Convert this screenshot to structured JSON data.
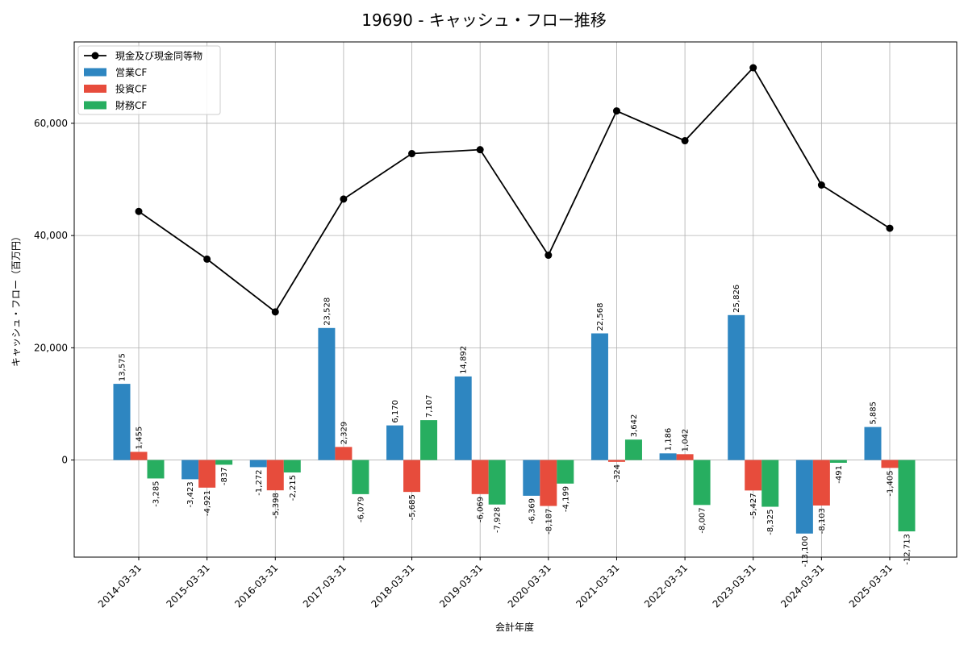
{
  "chart_data": {
    "type": "bar",
    "title": "19690 - キャッシュ・フロー推移",
    "xlabel": "会計年度",
    "ylabel": "キャッシュ・フロー（百万円）",
    "ylim": [
      -17300,
      74500
    ],
    "yticks": [
      0,
      20000,
      40000,
      60000
    ],
    "ytick_labels": [
      "0",
      "20,000",
      "40,000",
      "60,000"
    ],
    "grid": true,
    "legend_position": "top-left",
    "categories": [
      "2014-03-31",
      "2015-03-31",
      "2016-03-31",
      "2017-03-31",
      "2018-03-31",
      "2019-03-31",
      "2020-03-31",
      "2021-03-31",
      "2022-03-31",
      "2023-03-31",
      "2024-03-31",
      "2025-03-31"
    ],
    "series": [
      {
        "name": "営業CF",
        "kind": "bar",
        "color": "#2e86c1",
        "values": [
          13575,
          -3423,
          -1272,
          23528,
          6170,
          14892,
          -6369,
          22568,
          1186,
          25826,
          -13100,
          5885
        ],
        "labels": [
          "13,575",
          "-3,423",
          "-1,272",
          "23,528",
          "6,170",
          "14,892",
          "-6,369",
          "22,568",
          "1,186",
          "25,826",
          "-13,100",
          "5,885"
        ]
      },
      {
        "name": "投資CF",
        "kind": "bar",
        "color": "#e74c3c",
        "values": [
          1455,
          -4921,
          -5398,
          2329,
          -5685,
          -6069,
          -8187,
          -324,
          1042,
          -5427,
          -8103,
          -1405
        ],
        "labels": [
          "1,455",
          "-4,921",
          "-5,398",
          "2,329",
          "-5,685",
          "-6,069",
          "-8,187",
          "-324",
          "1,042",
          "-5,427",
          "-8,103",
          "-1,405"
        ]
      },
      {
        "name": "財務CF",
        "kind": "bar",
        "color": "#27ae60",
        "values": [
          -3285,
          -837,
          -2215,
          -6079,
          7107,
          -7928,
          -4199,
          3642,
          -8007,
          -8325,
          -491,
          -12713
        ],
        "labels": [
          "-3,285",
          "-837",
          "-2,215",
          "-6,079",
          "7,107",
          "-7,928",
          "-4,199",
          "3,642",
          "-8,007",
          "-8,325",
          "-491",
          "-12,713"
        ]
      },
      {
        "name": "現金及び現金同等物",
        "kind": "line",
        "color": "#000000",
        "values": [
          44300,
          35800,
          26400,
          46500,
          54600,
          55300,
          36500,
          62200,
          56900,
          69900,
          49000,
          41300
        ]
      }
    ]
  }
}
